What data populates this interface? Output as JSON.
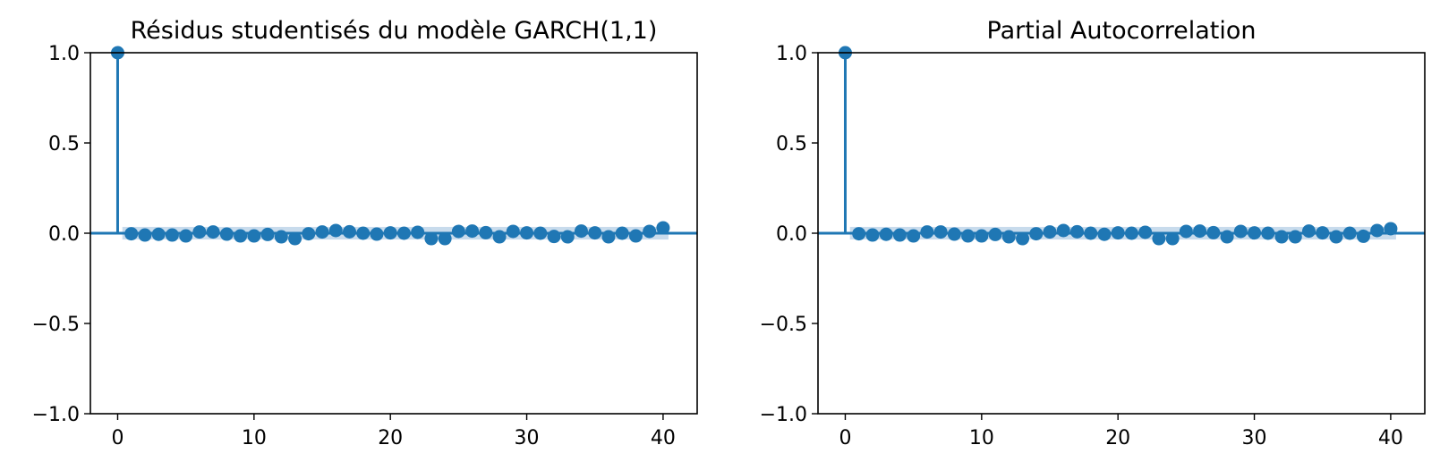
{
  "figure": {
    "background": "#ffffff",
    "stem_color": "#1f77b4",
    "band_color": "#b5cfe6"
  },
  "chart_data": [
    {
      "type": "stem",
      "title": "Résidus studentisés du modèle GARCH(1,1)",
      "xlabel": "",
      "ylabel": "",
      "xlim": [
        -2,
        42.5
      ],
      "ylim": [
        -1.0,
        1.0
      ],
      "xticks": [
        "0",
        "10",
        "20",
        "30",
        "40"
      ],
      "yticks": [
        "−1.0",
        "−0.5",
        "0.0",
        "0.5",
        "1.0"
      ],
      "lags": [
        0,
        1,
        2,
        3,
        4,
        5,
        6,
        7,
        8,
        9,
        10,
        11,
        12,
        13,
        14,
        15,
        16,
        17,
        18,
        19,
        20,
        21,
        22,
        23,
        24,
        25,
        26,
        27,
        28,
        29,
        30,
        31,
        32,
        33,
        34,
        35,
        36,
        37,
        38,
        39,
        40
      ],
      "values": [
        1.0,
        -0.003,
        -0.01,
        -0.006,
        -0.01,
        -0.015,
        0.007,
        0.007,
        -0.005,
        -0.015,
        -0.015,
        -0.007,
        -0.02,
        -0.03,
        -0.003,
        0.007,
        0.015,
        0.008,
        0.0,
        -0.005,
        0.002,
        0.0,
        0.005,
        -0.03,
        -0.03,
        0.01,
        0.012,
        0.003,
        -0.02,
        0.01,
        0.002,
        0.0,
        -0.018,
        -0.02,
        0.012,
        0.002,
        -0.02,
        0.0,
        -0.015,
        0.01,
        0.03
      ],
      "conf_band": 0.035,
      "grid": false,
      "legend": "none"
    },
    {
      "type": "stem",
      "title": "Partial Autocorrelation",
      "xlabel": "",
      "ylabel": "",
      "xlim": [
        -2,
        42.5
      ],
      "ylim": [
        -1.0,
        1.0
      ],
      "xticks": [
        "0",
        "10",
        "20",
        "30",
        "40"
      ],
      "yticks": [
        "−1.0",
        "−0.5",
        "0.0",
        "0.5",
        "1.0"
      ],
      "lags": [
        0,
        1,
        2,
        3,
        4,
        5,
        6,
        7,
        8,
        9,
        10,
        11,
        12,
        13,
        14,
        15,
        16,
        17,
        18,
        19,
        20,
        21,
        22,
        23,
        24,
        25,
        26,
        27,
        28,
        29,
        30,
        31,
        32,
        33,
        34,
        35,
        36,
        37,
        38,
        39,
        40
      ],
      "values": [
        1.0,
        -0.003,
        -0.01,
        -0.006,
        -0.01,
        -0.015,
        0.007,
        0.007,
        -0.005,
        -0.015,
        -0.015,
        -0.007,
        -0.02,
        -0.03,
        -0.003,
        0.007,
        0.015,
        0.008,
        0.0,
        -0.006,
        0.002,
        0.0,
        0.005,
        -0.03,
        -0.03,
        0.01,
        0.012,
        0.003,
        -0.02,
        0.01,
        0.002,
        0.0,
        -0.02,
        -0.02,
        0.012,
        0.002,
        -0.02,
        0.0,
        -0.017,
        0.015,
        0.025
      ],
      "conf_band": 0.035,
      "grid": false,
      "legend": "none"
    }
  ]
}
